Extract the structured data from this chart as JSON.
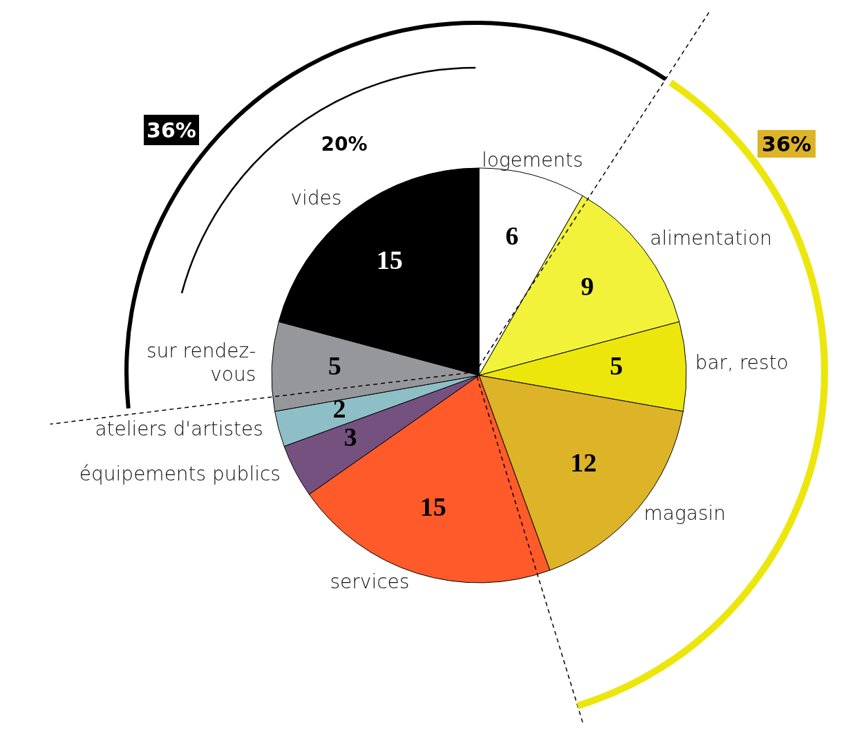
{
  "chart_data": {
    "type": "pie",
    "categories": [
      "logements",
      "alimentation",
      "bar, resto",
      "magasin",
      "services",
      "équipements publics",
      "ateliers d'artistes",
      "sur rendez-vous",
      "vides"
    ],
    "values": [
      6,
      9,
      5,
      12,
      15,
      3,
      2,
      5,
      15
    ],
    "colors": [
      "#ffffff",
      "#f2f23a",
      "#ece60c",
      "#ddb328",
      "#ff5a2a",
      "#74517f",
      "#8fbfc6",
      "#96979b",
      "#000000"
    ],
    "data_labels": true,
    "annotations": [
      "36%",
      "20%",
      "36%"
    ]
  }
}
